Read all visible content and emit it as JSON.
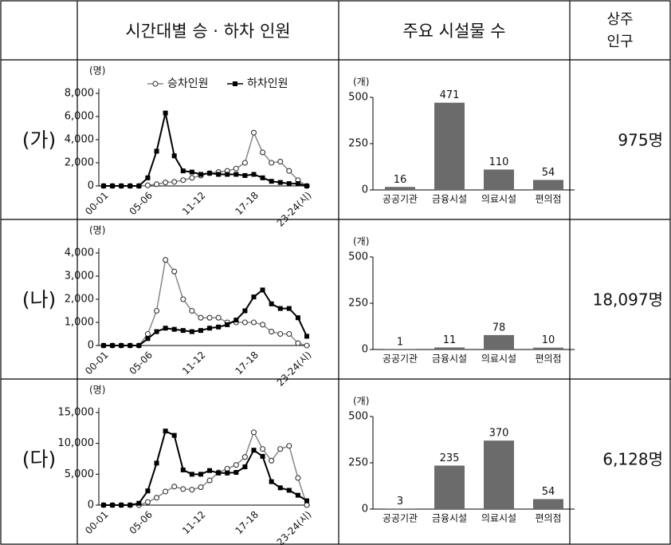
{
  "table": {
    "headers": {
      "time": "시간대별 승 · 하차 인원",
      "facilities": "주요 시설물 수",
      "population": [
        "상주",
        "인구"
      ]
    },
    "rows": [
      {
        "label": "(가)",
        "population": "975명",
        "boarding_chart": {
          "type": "line",
          "y_unit": "(명)",
          "categories": [
            "00-01",
            null,
            null,
            null,
            null,
            "05-06",
            null,
            null,
            null,
            null,
            null,
            "11-12",
            null,
            null,
            null,
            null,
            null,
            "17-18",
            null,
            null,
            null,
            null,
            null,
            "23-24(시)"
          ],
          "series": [
            {
              "name": "승차인원",
              "color": "#888888",
              "marker": "circle-open",
              "values": [
                0,
                0,
                0,
                0,
                0,
                50,
                150,
                300,
                350,
                500,
                700,
                900,
                1100,
                1200,
                1300,
                1500,
                2000,
                4600,
                2900,
                2000,
                2100,
                1300,
                500,
                0
              ]
            },
            {
              "name": "하차인원",
              "color": "#000000",
              "marker": "square",
              "values": [
                0,
                0,
                0,
                0,
                0,
                700,
                3000,
                6300,
                2600,
                1300,
                1200,
                1000,
                1100,
                1000,
                1000,
                1000,
                900,
                1000,
                700,
                400,
                300,
                200,
                200,
                0
              ]
            }
          ],
          "ylim": [
            0,
            8000
          ],
          "yticks": [
            0,
            {
              "value": 2000,
              "label": "2,000"
            },
            {
              "value": 4000,
              "label": "4,000"
            },
            {
              "value": 6000,
              "label": "6,000"
            },
            {
              "value": 8000,
              "label": "8,000"
            }
          ],
          "legend": true
        },
        "facility_chart": {
          "type": "bar",
          "y_unit": "(개)",
          "categories": [
            "공공기관",
            "금융시설",
            "의료시설",
            "편의점"
          ],
          "values": [
            16,
            471,
            110,
            54
          ],
          "color": "#6b6b6b",
          "ylim": [
            0,
            500
          ],
          "yticks": [
            0,
            250,
            500
          ]
        }
      },
      {
        "label": "(나)",
        "population": "18,097명",
        "boarding_chart": {
          "type": "line",
          "y_unit": "(명)",
          "categories": [
            "00-01",
            null,
            null,
            null,
            null,
            "05-06",
            null,
            null,
            null,
            null,
            null,
            "11-12",
            null,
            null,
            null,
            null,
            null,
            "17-18",
            null,
            null,
            null,
            null,
            null,
            "23-24(시)"
          ],
          "series": [
            {
              "color": "#888888",
              "marker": "circle-open",
              "values": [
                0,
                0,
                0,
                0,
                0,
                500,
                1500,
                3700,
                3200,
                2000,
                1500,
                1200,
                1200,
                1200,
                1000,
                1000,
                1000,
                1000,
                900,
                600,
                500,
                500,
                100,
                0
              ]
            },
            {
              "color": "#000000",
              "marker": "square",
              "values": [
                0,
                0,
                0,
                0,
                0,
                300,
                600,
                750,
                700,
                650,
                600,
                650,
                750,
                800,
                900,
                1100,
                1500,
                2100,
                2400,
                1800,
                1600,
                1600,
                1200,
                400
              ]
            }
          ],
          "ylim": [
            0,
            4000
          ],
          "yticks": [
            0,
            {
              "value": 1000,
              "label": "1,000"
            },
            {
              "value": 2000,
              "label": "2,000"
            },
            {
              "value": 3000,
              "label": "3,000"
            },
            {
              "value": 4000,
              "label": "4,000"
            }
          ],
          "legend": false
        },
        "facility_chart": {
          "type": "bar",
          "y_unit": "(개)",
          "categories": [
            "공공기관",
            "금융시설",
            "의료시설",
            "편의점"
          ],
          "values": [
            1,
            11,
            78,
            10
          ],
          "color": "#6b6b6b",
          "ylim": [
            0,
            500
          ],
          "yticks": [
            0,
            250,
            500
          ]
        }
      },
      {
        "label": "(다)",
        "population": "6,128명",
        "boarding_chart": {
          "type": "line",
          "y_unit": "(명)",
          "categories": [
            "00-01",
            null,
            null,
            null,
            null,
            "05-06",
            null,
            null,
            null,
            null,
            null,
            "11-12",
            null,
            null,
            null,
            null,
            null,
            "17-18",
            null,
            null,
            null,
            null,
            null,
            "23-24(시)"
          ],
          "series": [
            {
              "color": "#888888",
              "marker": "circle-open",
              "values": [
                0,
                0,
                0,
                0,
                0,
                500,
                1200,
                2200,
                3000,
                2600,
                2500,
                2900,
                4000,
                5300,
                5900,
                6500,
                7800,
                11800,
                9100,
                7200,
                9100,
                9600,
                4400,
                0
              ]
            },
            {
              "color": "#000000",
              "marker": "square",
              "values": [
                0,
                0,
                0,
                0,
                300,
                2300,
                6800,
                12000,
                11300,
                5700,
                5000,
                5000,
                5600,
                5200,
                5200,
                5300,
                6200,
                8900,
                7900,
                3800,
                2800,
                2400,
                1600,
                700
              ]
            }
          ],
          "ylim": [
            0,
            15000
          ],
          "yticks": [
            0,
            {
              "value": 5000,
              "label": "5,000"
            },
            {
              "value": 10000,
              "label": "10,000"
            },
            {
              "value": 15000,
              "label": "15,000"
            }
          ],
          "legend": false
        },
        "facility_chart": {
          "type": "bar",
          "y_unit": "(개)",
          "categories": [
            "공공기관",
            "금융시설",
            "의료시설",
            "편의점"
          ],
          "values": [
            3,
            235,
            370,
            54
          ],
          "color": "#6b6b6b",
          "ylim": [
            0,
            500
          ],
          "yticks": [
            0,
            250,
            500
          ]
        }
      }
    ]
  }
}
